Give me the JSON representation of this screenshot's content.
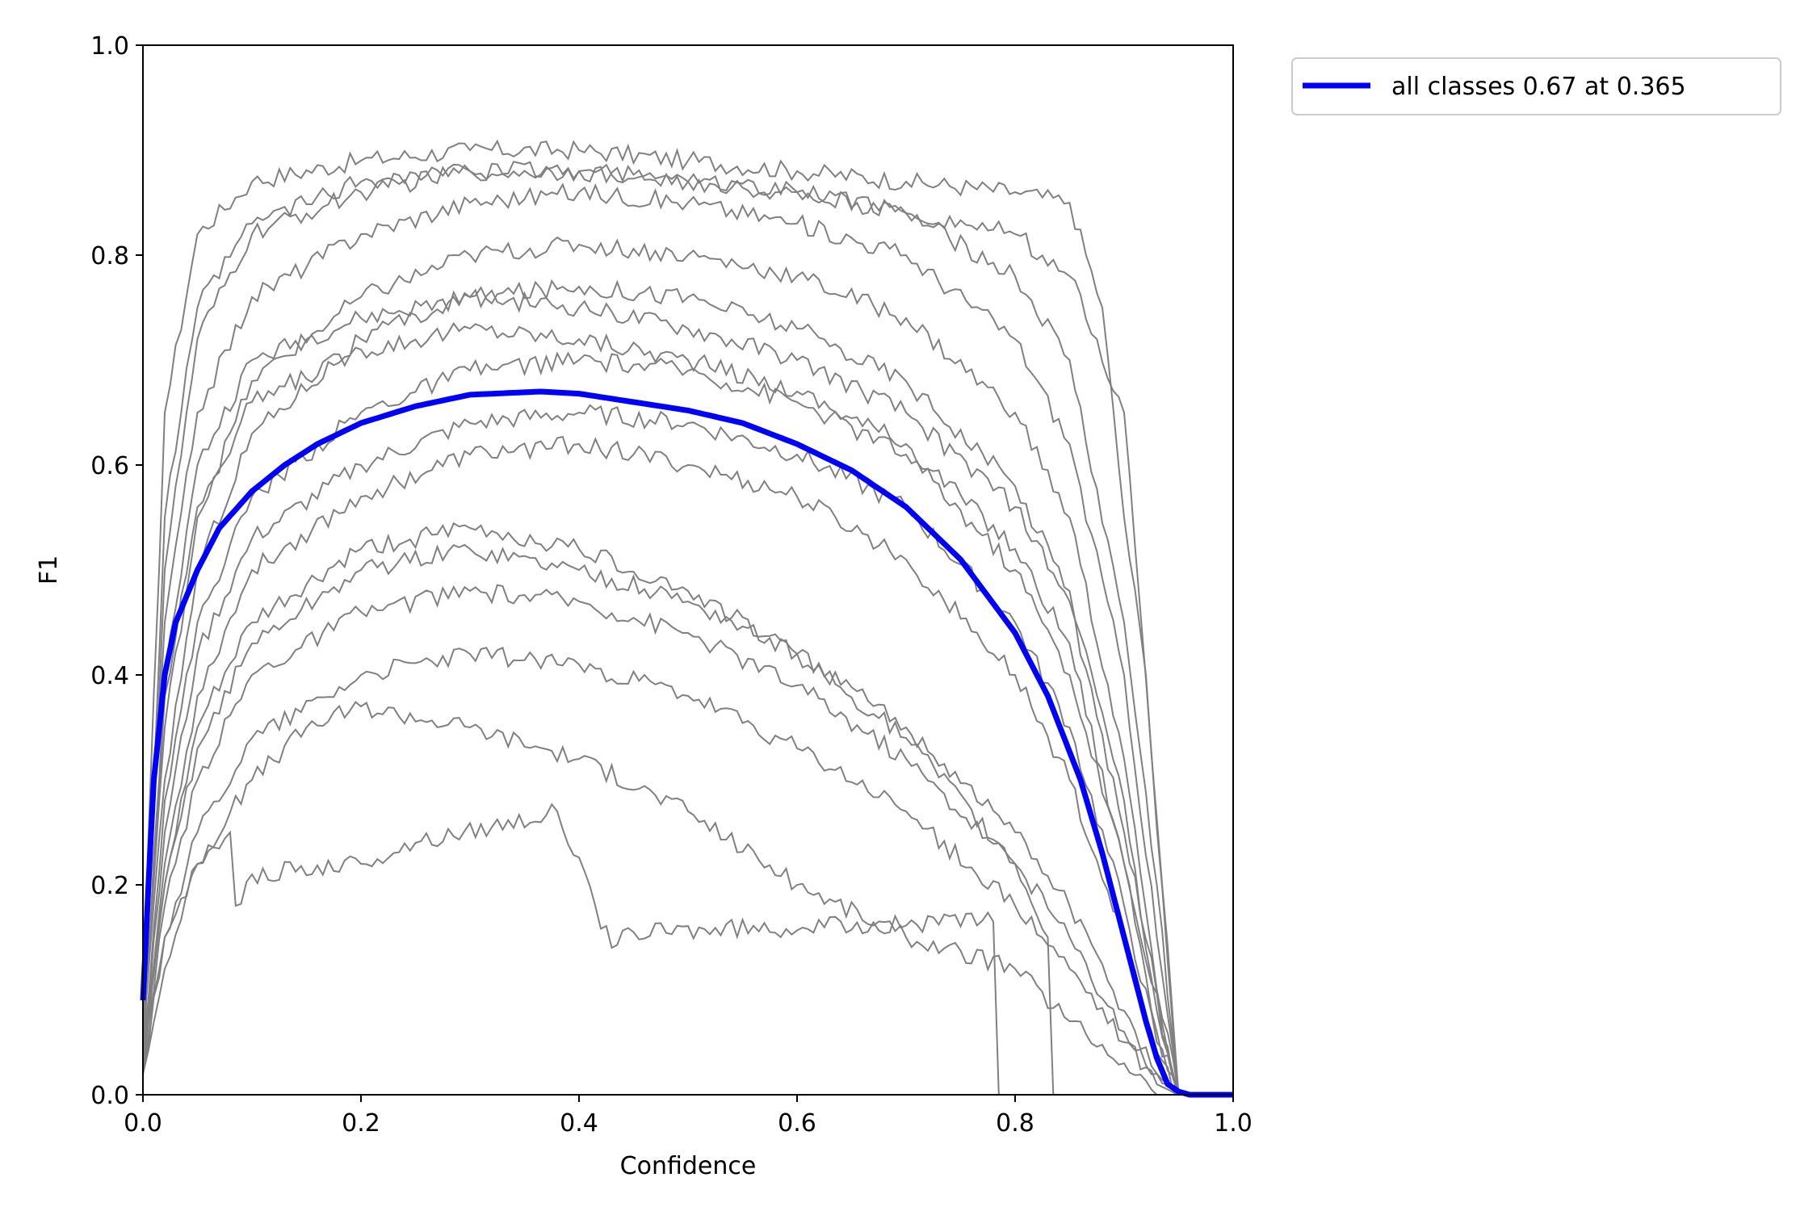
{
  "chart_data": {
    "type": "line",
    "title": "",
    "xlabel": "Confidence",
    "ylabel": "F1",
    "xlim": [
      0.0,
      1.0
    ],
    "ylim": [
      0.0,
      1.0
    ],
    "xticks": [
      "0.0",
      "0.2",
      "0.4",
      "0.6",
      "0.8",
      "1.0"
    ],
    "yticks": [
      "0.0",
      "0.2",
      "0.4",
      "0.6",
      "0.8",
      "1.0"
    ],
    "grid": false,
    "legend_position": "outside-top-right",
    "per_class_color": "#808080",
    "summary_color": "#0000ff",
    "series": [
      {
        "name": "all classes 0.67 at 0.365",
        "color": "#0000ff",
        "x": [
          0.0,
          0.005,
          0.01,
          0.02,
          0.03,
          0.05,
          0.07,
          0.1,
          0.13,
          0.16,
          0.2,
          0.25,
          0.3,
          0.365,
          0.4,
          0.45,
          0.5,
          0.55,
          0.6,
          0.65,
          0.7,
          0.75,
          0.8,
          0.83,
          0.86,
          0.88,
          0.9,
          0.92,
          0.93,
          0.94,
          0.95,
          0.96,
          1.0
        ],
        "y": [
          0.09,
          0.2,
          0.3,
          0.4,
          0.45,
          0.5,
          0.54,
          0.575,
          0.6,
          0.62,
          0.64,
          0.656,
          0.667,
          0.67,
          0.668,
          0.66,
          0.652,
          0.64,
          0.62,
          0.595,
          0.56,
          0.51,
          0.44,
          0.38,
          0.3,
          0.23,
          0.15,
          0.07,
          0.035,
          0.01,
          0.003,
          0.0,
          0.0
        ]
      }
    ],
    "per_class_series": [
      {
        "x": [
          0.0,
          0.02,
          0.05,
          0.1,
          0.2,
          0.3,
          0.4,
          0.5,
          0.6,
          0.7,
          0.8,
          0.85,
          0.88,
          0.9,
          0.92,
          0.95,
          1.0
        ],
        "y": [
          0.1,
          0.65,
          0.82,
          0.87,
          0.89,
          0.9,
          0.9,
          0.89,
          0.88,
          0.87,
          0.86,
          0.85,
          0.75,
          0.55,
          0.4,
          0.0,
          0.0
        ]
      },
      {
        "x": [
          0.0,
          0.02,
          0.05,
          0.1,
          0.2,
          0.3,
          0.4,
          0.5,
          0.6,
          0.7,
          0.8,
          0.85,
          0.9,
          0.93,
          0.95,
          1.0
        ],
        "y": [
          0.05,
          0.5,
          0.72,
          0.82,
          0.86,
          0.88,
          0.88,
          0.87,
          0.86,
          0.84,
          0.78,
          0.7,
          0.45,
          0.2,
          0.0,
          0.0
        ]
      },
      {
        "x": [
          0.0,
          0.02,
          0.05,
          0.1,
          0.2,
          0.3,
          0.4,
          0.5,
          0.6,
          0.7,
          0.8,
          0.85,
          0.9,
          0.93,
          0.95,
          1.0
        ],
        "y": [
          0.08,
          0.45,
          0.65,
          0.76,
          0.82,
          0.85,
          0.86,
          0.85,
          0.83,
          0.8,
          0.72,
          0.62,
          0.4,
          0.15,
          0.0,
          0.0
        ]
      },
      {
        "x": [
          0.0,
          0.02,
          0.05,
          0.1,
          0.2,
          0.3,
          0.4,
          0.5,
          0.6,
          0.7,
          0.8,
          0.85,
          0.9,
          0.93,
          0.95,
          1.0
        ],
        "y": [
          0.06,
          0.35,
          0.55,
          0.68,
          0.76,
          0.8,
          0.81,
          0.8,
          0.78,
          0.74,
          0.65,
          0.55,
          0.32,
          0.1,
          0.0,
          0.0
        ]
      },
      {
        "x": [
          0.0,
          0.02,
          0.05,
          0.1,
          0.2,
          0.3,
          0.4,
          0.5,
          0.6,
          0.7,
          0.8,
          0.85,
          0.9,
          0.93,
          0.95,
          1.0
        ],
        "y": [
          0.05,
          0.3,
          0.5,
          0.63,
          0.72,
          0.76,
          0.77,
          0.76,
          0.73,
          0.68,
          0.58,
          0.48,
          0.28,
          0.08,
          0.0,
          0.0
        ]
      },
      {
        "x": [
          0.0,
          0.02,
          0.05,
          0.1,
          0.2,
          0.3,
          0.4,
          0.5,
          0.6,
          0.7,
          0.8,
          0.85,
          0.9,
          0.93,
          0.95,
          1.0
        ],
        "y": [
          0.04,
          0.28,
          0.45,
          0.57,
          0.65,
          0.69,
          0.7,
          0.69,
          0.66,
          0.61,
          0.5,
          0.4,
          0.22,
          0.06,
          0.0,
          0.0
        ]
      },
      {
        "x": [
          0.0,
          0.02,
          0.05,
          0.1,
          0.2,
          0.3,
          0.4,
          0.5,
          0.6,
          0.7,
          0.8,
          0.85,
          0.9,
          0.93,
          0.95,
          1.0
        ],
        "y": [
          0.03,
          0.25,
          0.42,
          0.53,
          0.6,
          0.64,
          0.65,
          0.64,
          0.61,
          0.56,
          0.45,
          0.35,
          0.18,
          0.05,
          0.0,
          0.0
        ]
      },
      {
        "x": [
          0.0,
          0.02,
          0.05,
          0.1,
          0.2,
          0.3,
          0.4,
          0.5,
          0.6,
          0.7,
          0.8,
          0.85,
          0.9,
          0.93,
          0.95,
          1.0
        ],
        "y": [
          0.03,
          0.22,
          0.38,
          0.5,
          0.57,
          0.61,
          0.62,
          0.6,
          0.57,
          0.51,
          0.4,
          0.3,
          0.15,
          0.04,
          0.0,
          0.0
        ]
      },
      {
        "x": [
          0.0,
          0.02,
          0.05,
          0.1,
          0.2,
          0.3,
          0.4,
          0.5,
          0.6,
          0.7,
          0.8,
          0.85,
          0.9,
          0.93,
          0.95,
          1.0
        ],
        "y": [
          0.02,
          0.2,
          0.33,
          0.43,
          0.5,
          0.52,
          0.5,
          0.47,
          0.42,
          0.35,
          0.25,
          0.18,
          0.08,
          0.02,
          0.0,
          0.0
        ]
      },
      {
        "x": [
          0.0,
          0.02,
          0.05,
          0.1,
          0.2,
          0.3,
          0.4,
          0.5,
          0.6,
          0.7,
          0.8,
          0.85,
          0.9,
          0.93,
          0.95,
          1.0
        ],
        "y": [
          0.02,
          0.18,
          0.3,
          0.4,
          0.46,
          0.48,
          0.47,
          0.44,
          0.39,
          0.32,
          0.22,
          0.15,
          0.06,
          0.02,
          0.0,
          0.0
        ]
      },
      {
        "x": [
          0.0,
          0.02,
          0.05,
          0.1,
          0.2,
          0.3,
          0.4,
          0.5,
          0.6,
          0.7,
          0.8,
          0.85,
          0.9,
          0.93,
          0.95,
          1.0
        ],
        "y": [
          0.02,
          0.15,
          0.25,
          0.34,
          0.4,
          0.42,
          0.41,
          0.38,
          0.33,
          0.27,
          0.18,
          0.12,
          0.05,
          0.01,
          0.0,
          0.0
        ]
      },
      {
        "x": [
          0.0,
          0.02,
          0.05,
          0.1,
          0.15,
          0.2,
          0.3,
          0.4,
          0.5,
          0.6,
          0.7,
          0.8,
          0.85,
          0.9,
          0.93,
          1.0
        ],
        "y": [
          0.02,
          0.12,
          0.22,
          0.3,
          0.35,
          0.37,
          0.35,
          0.32,
          0.27,
          0.2,
          0.15,
          0.12,
          0.07,
          0.03,
          0.0,
          0.0
        ]
      },
      {
        "x": [
          0.0,
          0.02,
          0.05,
          0.08,
          0.085,
          0.1,
          0.2,
          0.25,
          0.38,
          0.43,
          0.45,
          0.78,
          0.785,
          0.79,
          1.0
        ],
        "y": [
          0.02,
          0.15,
          0.22,
          0.25,
          0.18,
          0.21,
          0.22,
          0.24,
          0.27,
          0.14,
          0.155,
          0.165,
          0.0,
          0.0,
          0.0
        ]
      },
      {
        "x": [
          0.0,
          0.02,
          0.05,
          0.1,
          0.2,
          0.3,
          0.4,
          0.5,
          0.6,
          0.7,
          0.8,
          0.83,
          0.835,
          1.0
        ],
        "y": [
          0.03,
          0.2,
          0.35,
          0.45,
          0.52,
          0.54,
          0.52,
          0.48,
          0.42,
          0.34,
          0.22,
          0.15,
          0.0,
          0.0
        ]
      },
      {
        "x": [
          0.0,
          0.02,
          0.05,
          0.1,
          0.2,
          0.3,
          0.4,
          0.5,
          0.6,
          0.7,
          0.8,
          0.85,
          0.9,
          0.95,
          1.0
        ],
        "y": [
          0.04,
          0.4,
          0.6,
          0.7,
          0.74,
          0.76,
          0.75,
          0.73,
          0.7,
          0.65,
          0.56,
          0.47,
          0.25,
          0.0,
          0.0
        ]
      },
      {
        "x": [
          0.0,
          0.02,
          0.05,
          0.1,
          0.2,
          0.3,
          0.4,
          0.5,
          0.6,
          0.7,
          0.8,
          0.85,
          0.9,
          0.95,
          1.0
        ],
        "y": [
          0.05,
          0.55,
          0.75,
          0.83,
          0.87,
          0.88,
          0.88,
          0.87,
          0.86,
          0.84,
          0.82,
          0.78,
          0.65,
          0.0,
          0.0
        ]
      },
      {
        "x": [
          0.0,
          0.02,
          0.05,
          0.1,
          0.2,
          0.3,
          0.4,
          0.5,
          0.6,
          0.7,
          0.8,
          0.85,
          0.9,
          0.95,
          1.0
        ],
        "y": [
          0.04,
          0.38,
          0.56,
          0.66,
          0.71,
          0.73,
          0.72,
          0.7,
          0.67,
          0.62,
          0.52,
          0.43,
          0.22,
          0.0,
          0.0
        ]
      }
    ]
  }
}
